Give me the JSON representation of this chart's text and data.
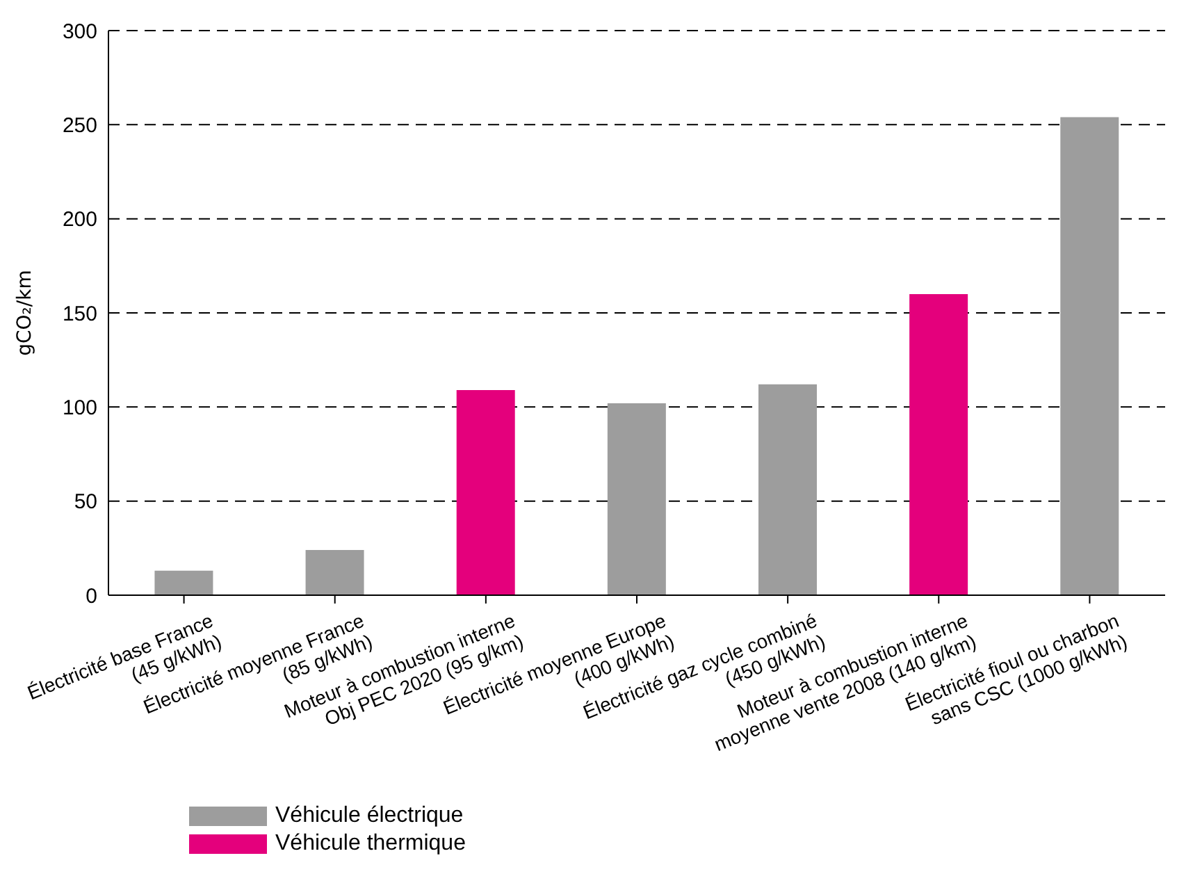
{
  "chart_data": {
    "type": "bar",
    "categories": [
      "Électricité base France\n(45 g/kWh)",
      "Électricité moyenne France\n(85 g/kWh)",
      "Moteur à combustion interne\nObj PEC 2020 (95 g/km)",
      "Électricité moyenne Europe\n(400 g/kWh)",
      "Électricité gaz cycle combiné\n(450 g/kWh)",
      "Moteur à combustion interne\nmoyenne vente 2008 (140 g/km)",
      "Électricité fioul ou charbon\nsans CSC (1000 g/kWh)"
    ],
    "series": [
      {
        "name": "Véhicule électrique",
        "color": "#9d9d9d",
        "values": [
          13,
          24,
          null,
          102,
          112,
          null,
          254
        ]
      },
      {
        "name": "Véhicule thermique",
        "color": "#e4007c",
        "values": [
          null,
          null,
          109,
          null,
          null,
          160,
          null
        ]
      }
    ],
    "stacked": true,
    "ylabel": "gCO₂/km",
    "ylim": [
      0,
      300
    ],
    "yticks": [
      0,
      50,
      100,
      150,
      200,
      250,
      300
    ],
    "grid": "y",
    "legend": "bottom left"
  }
}
